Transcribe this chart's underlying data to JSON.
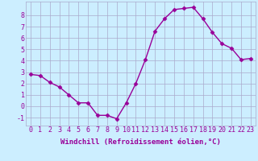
{
  "x": [
    0,
    1,
    2,
    3,
    4,
    5,
    6,
    7,
    8,
    9,
    10,
    11,
    12,
    13,
    14,
    15,
    16,
    17,
    18,
    19,
    20,
    21,
    22,
    23
  ],
  "y": [
    2.8,
    2.7,
    2.1,
    1.7,
    1.0,
    0.3,
    0.3,
    -0.8,
    -0.8,
    -1.1,
    0.3,
    2.0,
    4.1,
    6.6,
    7.7,
    8.5,
    8.6,
    8.7,
    7.7,
    6.5,
    5.5,
    5.1,
    4.1,
    4.2
  ],
  "line_color": "#990099",
  "marker": "D",
  "markersize": 2.5,
  "linewidth": 1.0,
  "bg_color": "#cceeff",
  "grid_color": "#aaaacc",
  "xlabel": "Windchill (Refroidissement éolien,°C)",
  "xlabel_fontsize": 6.5,
  "ylabel_ticks": [
    -1,
    0,
    1,
    2,
    3,
    4,
    5,
    6,
    7,
    8
  ],
  "xtick_labels": [
    "0",
    "1",
    "2",
    "3",
    "4",
    "5",
    "6",
    "7",
    "8",
    "9",
    "10",
    "11",
    "12",
    "13",
    "14",
    "15",
    "16",
    "17",
    "18",
    "19",
    "20",
    "21",
    "22",
    "23"
  ],
  "ylim": [
    -1.7,
    9.2
  ],
  "xlim": [
    -0.5,
    23.5
  ],
  "tick_fontsize": 6.0,
  "tick_color": "#990099",
  "font_family": "monospace"
}
